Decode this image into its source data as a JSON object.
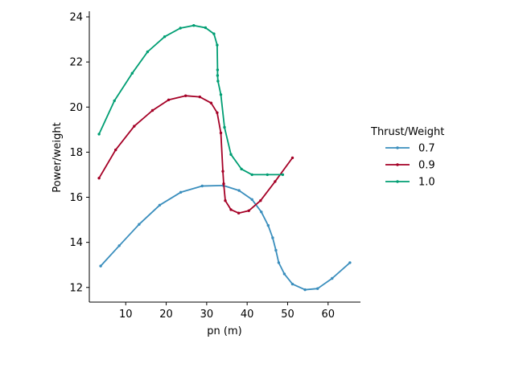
{
  "chart_data": {
    "type": "line",
    "xlabel": "pn (m)",
    "ylabel": "Power/weight",
    "xlim": [
      1.0,
      68.0
    ],
    "ylim": [
      11.35,
      24.25
    ],
    "xticks": [
      10,
      20,
      30,
      40,
      50,
      60
    ],
    "yticks": [
      12,
      14,
      16,
      18,
      20,
      22,
      24
    ],
    "grid": false,
    "legend": {
      "title": "Thrust/Weight",
      "placement": "right"
    },
    "series": [
      {
        "name": "0.7",
        "color": "#3a8ebd",
        "points": [
          [
            3.8,
            12.95
          ],
          [
            8.4,
            13.85
          ],
          [
            13.3,
            14.8
          ],
          [
            18.4,
            15.65
          ],
          [
            23.6,
            16.22
          ],
          [
            28.9,
            16.5
          ],
          [
            34.1,
            16.52
          ],
          [
            38.0,
            16.3
          ],
          [
            41.2,
            15.9
          ],
          [
            43.5,
            15.35
          ],
          [
            45.2,
            14.75
          ],
          [
            46.3,
            14.2
          ],
          [
            47.1,
            13.65
          ],
          [
            47.8,
            13.1
          ],
          [
            49.2,
            12.6
          ],
          [
            51.2,
            12.15
          ],
          [
            54.3,
            11.9
          ],
          [
            57.4,
            11.95
          ],
          [
            61.0,
            12.4
          ],
          [
            65.4,
            13.1
          ]
        ]
      },
      {
        "name": "0.9",
        "color": "#a50026",
        "points": [
          [
            3.4,
            16.85
          ],
          [
            7.5,
            18.1
          ],
          [
            12.1,
            19.15
          ],
          [
            16.6,
            19.85
          ],
          [
            20.6,
            20.32
          ],
          [
            24.8,
            20.5
          ],
          [
            28.3,
            20.45
          ],
          [
            31.1,
            20.18
          ],
          [
            32.6,
            19.75
          ],
          [
            33.5,
            18.85
          ],
          [
            34.0,
            17.15
          ],
          [
            34.2,
            16.6
          ],
          [
            34.6,
            15.85
          ],
          [
            36.0,
            15.45
          ],
          [
            37.9,
            15.3
          ],
          [
            40.4,
            15.4
          ],
          [
            43.3,
            15.85
          ],
          [
            46.9,
            16.7
          ],
          [
            51.2,
            17.75
          ]
        ]
      },
      {
        "name": "1.0",
        "color": "#009e73",
        "points": [
          [
            3.4,
            18.8
          ],
          [
            7.2,
            20.28
          ],
          [
            11.6,
            21.5
          ],
          [
            15.4,
            22.45
          ],
          [
            19.6,
            23.12
          ],
          [
            23.5,
            23.5
          ],
          [
            26.8,
            23.62
          ],
          [
            29.7,
            23.52
          ],
          [
            31.8,
            23.25
          ],
          [
            32.6,
            22.75
          ],
          [
            32.7,
            21.65
          ],
          [
            32.7,
            21.4
          ],
          [
            32.8,
            21.15
          ],
          [
            33.5,
            20.55
          ],
          [
            34.4,
            19.1
          ],
          [
            36.0,
            17.9
          ],
          [
            38.6,
            17.25
          ],
          [
            41.2,
            17.0
          ],
          [
            45.0,
            17.0
          ],
          [
            48.8,
            17.0
          ]
        ]
      }
    ]
  }
}
